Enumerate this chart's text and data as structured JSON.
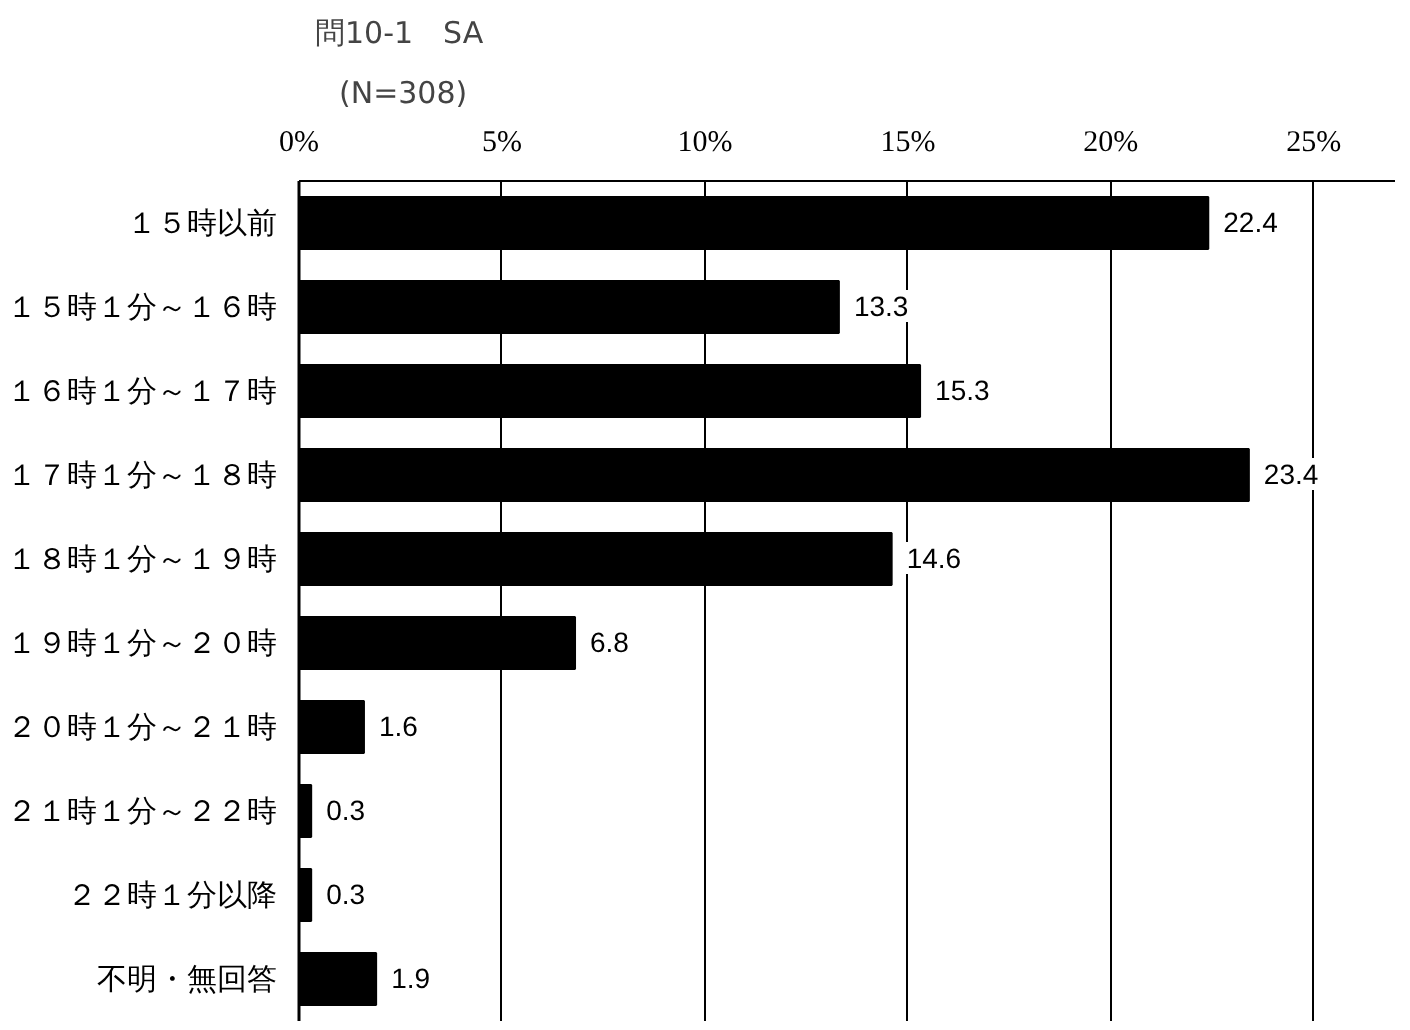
{
  "chart_data": {
    "type": "bar",
    "orientation": "horizontal",
    "title": "問10-1　SA",
    "subtitle": "(N=308)",
    "categories": [
      "１５時以前",
      "１５時１分～１６時",
      "１６時１分～１７時",
      "１７時１分～１８時",
      "１８時１分～１９時",
      "１９時１分～２０時",
      "２０時１分～２１時",
      "２１時１分～２２時",
      "２２時１分以降",
      "不明・無回答"
    ],
    "values": [
      22.4,
      13.3,
      15.3,
      23.4,
      14.6,
      6.8,
      1.6,
      0.3,
      0.3,
      1.9
    ],
    "value_labels": [
      "22.4",
      "13.3",
      "15.3",
      "23.4",
      "14.6",
      "6.8",
      "1.6",
      "0.3",
      "0.3",
      "1.9"
    ],
    "color": "#000000",
    "xlim": [
      0,
      27
    ],
    "xticks": [
      {
        "value": 0,
        "label": "0%"
      },
      {
        "value": 5,
        "label": "5%"
      },
      {
        "value": 10,
        "label": "10%"
      },
      {
        "value": 15,
        "label": "15%"
      },
      {
        "value": 20,
        "label": "20%"
      },
      {
        "value": 25,
        "label": "25%"
      }
    ],
    "grid": "x"
  }
}
